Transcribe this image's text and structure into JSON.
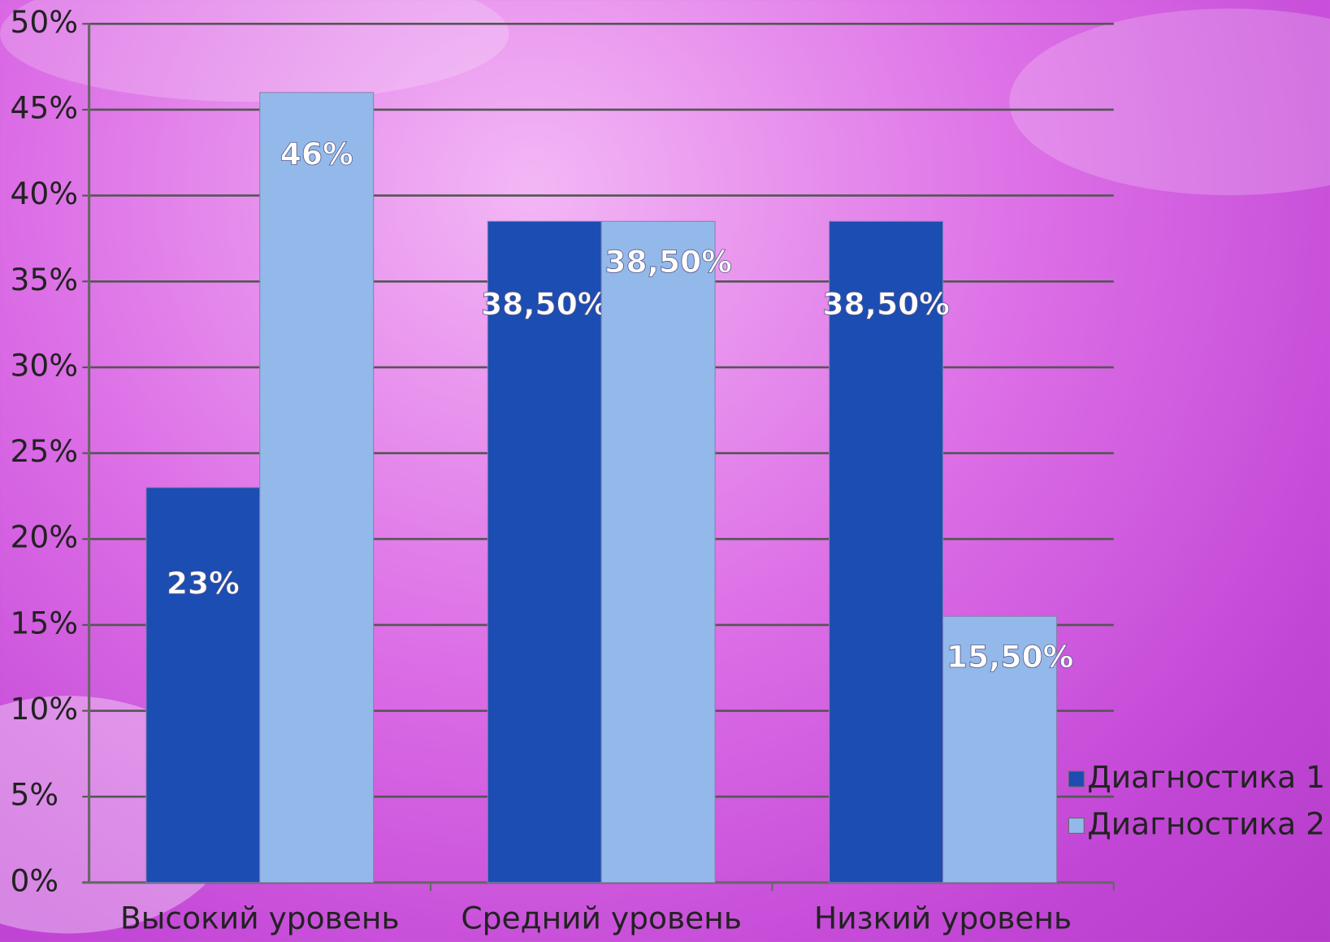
{
  "chart_data": {
    "type": "bar",
    "categories": [
      "Высокий уровень",
      "Средний уровень",
      "Низкий уровень"
    ],
    "series": [
      {
        "name": "Диагностика 1",
        "color": "#1b4db3",
        "values": [
          23,
          38.5,
          38.5
        ],
        "value_labels": [
          "23%",
          "38,50%",
          "38,50%"
        ]
      },
      {
        "name": "Диагностика 2",
        "color": "#93b9ea",
        "values": [
          46,
          38.5,
          15.5
        ],
        "value_labels": [
          "46%",
          "38,50%",
          "15,50%"
        ]
      }
    ],
    "ylim": [
      0,
      50
    ],
    "yticks": [
      {
        "value": 0,
        "label": "0%"
      },
      {
        "value": 5,
        "label": "5%"
      },
      {
        "value": 10,
        "label": "10%"
      },
      {
        "value": 15,
        "label": "15%"
      },
      {
        "value": 20,
        "label": "20%"
      },
      {
        "value": 25,
        "label": "25%"
      },
      {
        "value": 30,
        "label": "30%"
      },
      {
        "value": 35,
        "label": "35%"
      },
      {
        "value": 40,
        "label": "40%"
      },
      {
        "value": 45,
        "label": "45%"
      },
      {
        "value": 50,
        "label": "50%"
      }
    ],
    "grid": true,
    "legend": "right"
  }
}
